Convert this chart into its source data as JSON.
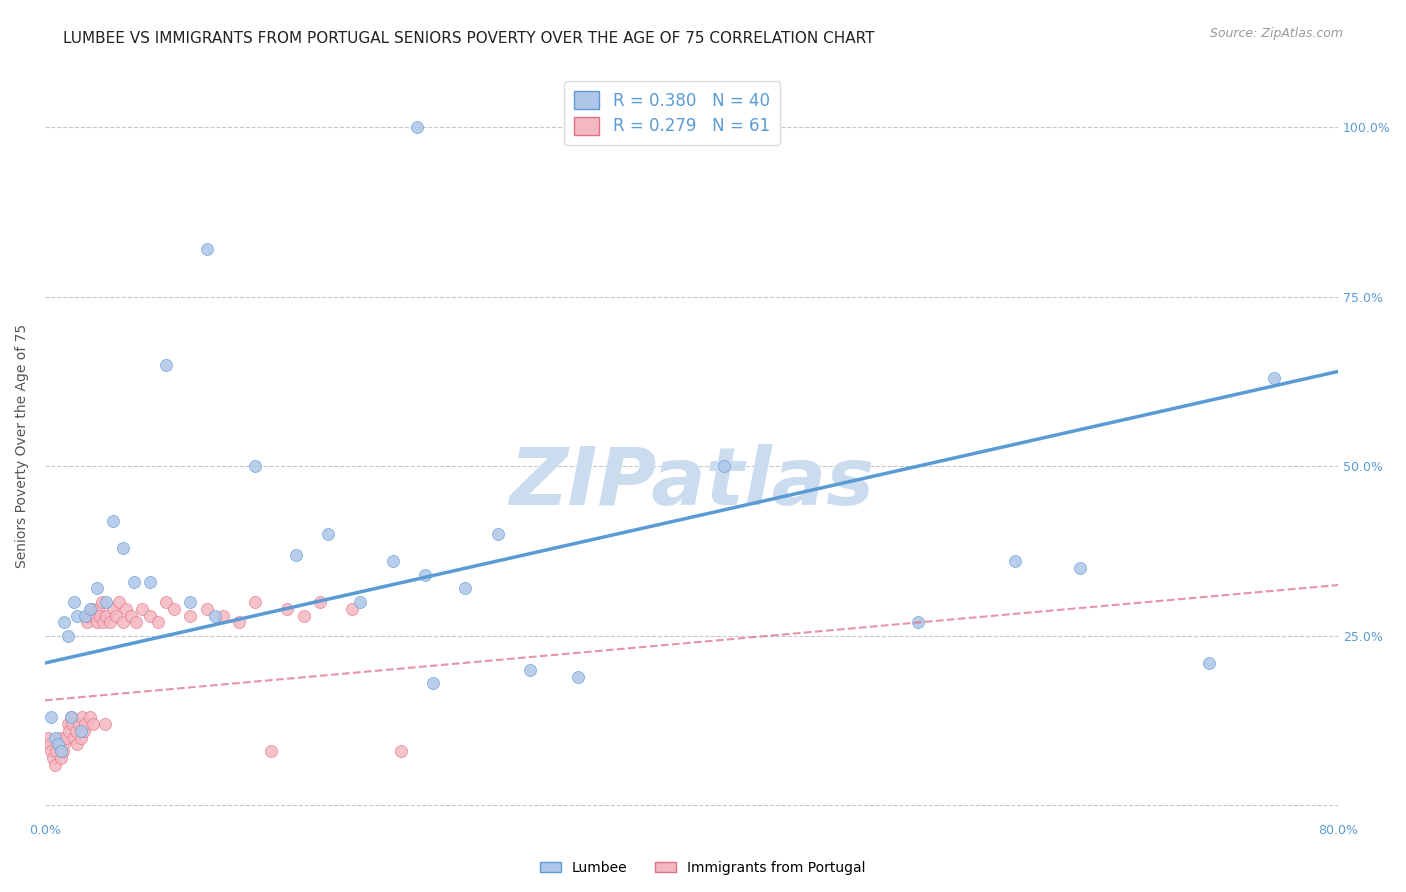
{
  "title": "LUMBEE VS IMMIGRANTS FROM PORTUGAL SENIORS POVERTY OVER THE AGE OF 75 CORRELATION CHART",
  "source": "Source: ZipAtlas.com",
  "ylabel": "Seniors Poverty Over the Age of 75",
  "xlim": [
    0.0,
    0.8
  ],
  "ylim": [
    -0.02,
    1.08
  ],
  "ytick_positions": [
    0.0,
    0.25,
    0.5,
    0.75,
    1.0
  ],
  "ytick_labels": [
    "",
    "25.0%",
    "50.0%",
    "75.0%",
    "100.0%"
  ],
  "grid_color": "#c8c8c8",
  "background_color": "#ffffff",
  "lumbee_color": "#aec6e8",
  "lumbee_edge_color": "#5b9bd5",
  "portugal_color": "#f4b8c1",
  "portugal_edge_color": "#e07088",
  "lumbee_R": 0.38,
  "lumbee_N": 40,
  "portugal_R": 0.279,
  "portugal_N": 61,
  "lumbee_x": [
    0.004,
    0.006,
    0.008,
    0.01,
    0.012,
    0.014,
    0.016,
    0.018,
    0.02,
    0.022,
    0.025,
    0.028,
    0.032,
    0.038,
    0.042,
    0.048,
    0.055,
    0.065,
    0.075,
    0.09,
    0.105,
    0.13,
    0.155,
    0.175,
    0.195,
    0.215,
    0.235,
    0.24,
    0.26,
    0.28,
    0.3,
    0.33,
    0.42,
    0.54,
    0.6,
    0.64,
    0.72,
    0.76,
    0.23,
    0.1
  ],
  "lumbee_y": [
    0.13,
    0.1,
    0.09,
    0.08,
    0.27,
    0.25,
    0.13,
    0.3,
    0.28,
    0.11,
    0.28,
    0.29,
    0.32,
    0.3,
    0.42,
    0.38,
    0.33,
    0.33,
    0.65,
    0.3,
    0.28,
    0.5,
    0.37,
    0.4,
    0.3,
    0.36,
    0.34,
    0.18,
    0.32,
    0.4,
    0.2,
    0.19,
    0.5,
    0.27,
    0.36,
    0.35,
    0.21,
    0.63,
    1.0,
    0.82
  ],
  "portugal_x": [
    0.002,
    0.003,
    0.004,
    0.005,
    0.006,
    0.007,
    0.008,
    0.009,
    0.01,
    0.011,
    0.012,
    0.013,
    0.014,
    0.015,
    0.016,
    0.017,
    0.018,
    0.019,
    0.02,
    0.021,
    0.022,
    0.023,
    0.024,
    0.025,
    0.026,
    0.027,
    0.028,
    0.029,
    0.03,
    0.031,
    0.032,
    0.033,
    0.034,
    0.035,
    0.036,
    0.037,
    0.038,
    0.04,
    0.042,
    0.044,
    0.046,
    0.048,
    0.05,
    0.053,
    0.056,
    0.06,
    0.065,
    0.07,
    0.075,
    0.08,
    0.09,
    0.1,
    0.11,
    0.12,
    0.13,
    0.14,
    0.15,
    0.16,
    0.17,
    0.19,
    0.22
  ],
  "portugal_y": [
    0.1,
    0.09,
    0.08,
    0.07,
    0.06,
    0.08,
    0.09,
    0.1,
    0.07,
    0.08,
    0.09,
    0.1,
    0.12,
    0.11,
    0.13,
    0.12,
    0.1,
    0.11,
    0.09,
    0.12,
    0.1,
    0.13,
    0.11,
    0.12,
    0.27,
    0.28,
    0.13,
    0.29,
    0.12,
    0.28,
    0.27,
    0.29,
    0.28,
    0.3,
    0.27,
    0.12,
    0.28,
    0.27,
    0.29,
    0.28,
    0.3,
    0.27,
    0.29,
    0.28,
    0.27,
    0.29,
    0.28,
    0.27,
    0.3,
    0.29,
    0.28,
    0.29,
    0.28,
    0.27,
    0.3,
    0.08,
    0.29,
    0.28,
    0.3,
    0.29,
    0.08
  ],
  "lumbee_line_x": [
    0.0,
    0.8
  ],
  "lumbee_line_y": [
    0.21,
    0.64
  ],
  "portugal_line_x": [
    0.0,
    0.8
  ],
  "portugal_line_y": [
    0.155,
    0.325
  ],
  "watermark": "ZIPatlas",
  "watermark_color": "#ccdcef",
  "legend_label_blue": "Lumbee",
  "legend_label_pink": "Immigrants from Portugal",
  "title_fontsize": 11,
  "axis_label_color": "#5b9bd5",
  "tick_color": "#5b9bd5",
  "marker_size": 75
}
